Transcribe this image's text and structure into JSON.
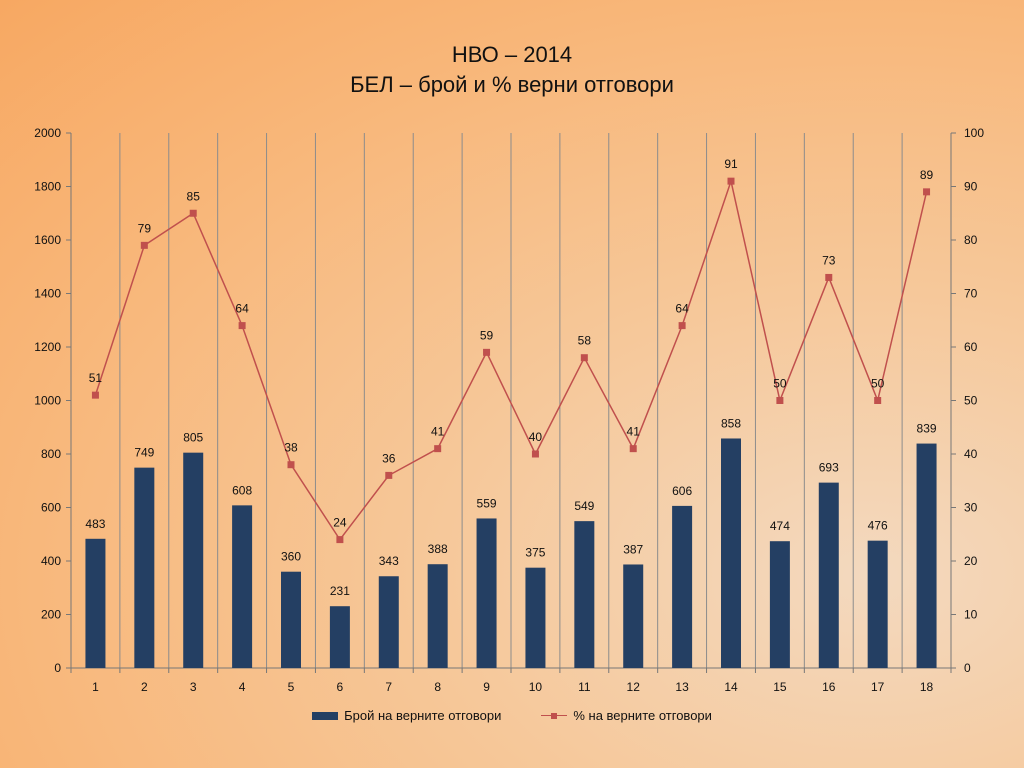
{
  "title": "НВО – 2014",
  "subtitle": "БЕЛ – брой и % верни отговори",
  "colors": {
    "bar": "#243f63",
    "line": "#c0504d",
    "grid": "#8c8c8c",
    "axis": "#777777"
  },
  "chart_data": {
    "type": "bar",
    "categories": [
      "1",
      "2",
      "3",
      "4",
      "5",
      "6",
      "7",
      "8",
      "9",
      "10",
      "11",
      "12",
      "13",
      "14",
      "15",
      "16",
      "17",
      "18"
    ],
    "series": [
      {
        "name": "Брой на верните отговори",
        "type": "bar",
        "axis": "left",
        "values": [
          483,
          749,
          805,
          608,
          360,
          231,
          343,
          388,
          559,
          375,
          549,
          387,
          606,
          858,
          474,
          693,
          476,
          839
        ]
      },
      {
        "name": "% на верните отговори",
        "type": "line",
        "axis": "right",
        "values": [
          51,
          79,
          85,
          64,
          38,
          24,
          36,
          41,
          59,
          40,
          58,
          41,
          64,
          91,
          50,
          73,
          50,
          89
        ],
        "labels": [
          "51",
          "79",
          "85",
          "64",
          "38",
          "24",
          "36",
          "41",
          "59",
          "40",
          "58",
          "41",
          "64",
          "91",
          "50",
          "73",
          "50",
          "89"
        ]
      }
    ],
    "yleft_ticks": [
      "0",
      "200",
      "400",
      "600",
      "800",
      "1000",
      "1200",
      "1400",
      "1600",
      "1800",
      "2000"
    ],
    "yright_ticks": [
      "0",
      "10",
      "20",
      "30",
      "40",
      "50",
      "60",
      "70",
      "80",
      "90",
      "100"
    ],
    "yleft_lim": [
      0,
      2000
    ],
    "yright_lim": [
      0,
      100
    ],
    "grid": "vertical",
    "legend_position": "bottom"
  }
}
